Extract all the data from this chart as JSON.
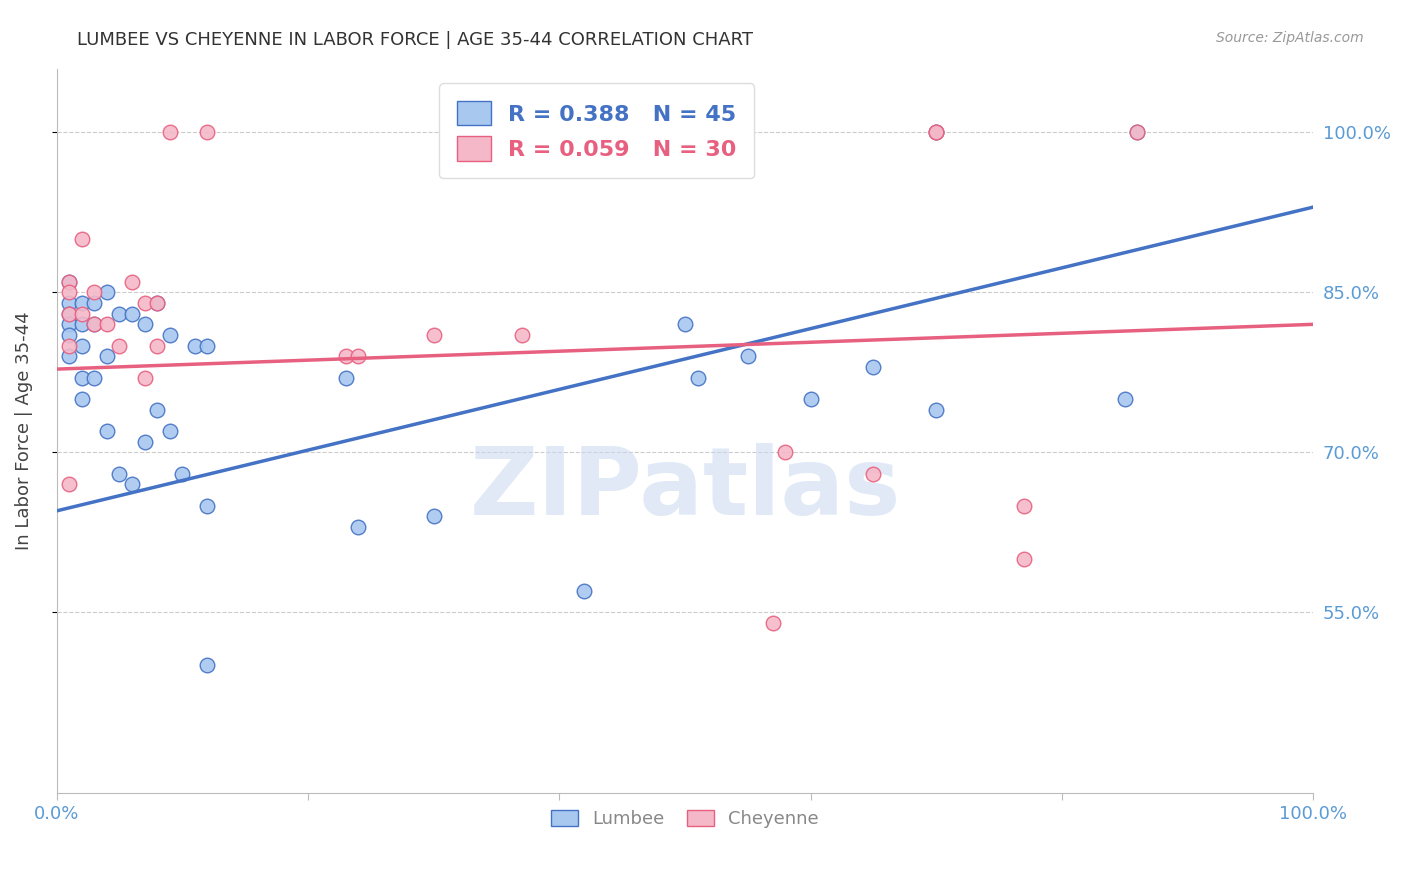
{
  "title": "LUMBEE VS CHEYENNE IN LABOR FORCE | AGE 35-44 CORRELATION CHART",
  "source": "Source: ZipAtlas.com",
  "ylabel": "In Labor Force | Age 35-44",
  "xlim": [
    0.0,
    1.0
  ],
  "ylim": [
    0.38,
    1.06
  ],
  "yticks": [
    0.55,
    0.7,
    0.85,
    1.0
  ],
  "ytick_labels": [
    "55.0%",
    "70.0%",
    "85.0%",
    "100.0%"
  ],
  "legend_blue_label": "R = 0.388   N = 45",
  "legend_pink_label": "R = 0.059   N = 30",
  "lumbee_color": "#A8C8F0",
  "cheyenne_color": "#F4B8C8",
  "blue_line_color": "#4472C4",
  "pink_line_color": "#E86080",
  "axis_color": "#5B9BD5",
  "grid_color": "#CCCCCC",
  "watermark": "ZIPatlas",
  "watermark_color": "#C8D8EE",
  "lumbee_x": [
    0.01,
    0.01,
    0.01,
    0.01,
    0.01,
    0.01,
    0.02,
    0.02,
    0.02,
    0.02,
    0.02,
    0.03,
    0.03,
    0.03,
    0.04,
    0.04,
    0.04,
    0.05,
    0.05,
    0.06,
    0.06,
    0.07,
    0.07,
    0.08,
    0.08,
    0.09,
    0.09,
    0.1,
    0.11,
    0.12,
    0.12,
    0.23,
    0.24,
    0.3,
    0.42,
    0.5,
    0.51,
    0.55,
    0.6,
    0.65,
    0.7,
    0.7,
    0.85,
    0.86,
    0.12
  ],
  "lumbee_y": [
    0.86,
    0.84,
    0.83,
    0.82,
    0.81,
    0.79,
    0.84,
    0.82,
    0.8,
    0.77,
    0.75,
    0.84,
    0.82,
    0.77,
    0.85,
    0.79,
    0.72,
    0.83,
    0.68,
    0.83,
    0.67,
    0.82,
    0.71,
    0.84,
    0.74,
    0.81,
    0.72,
    0.68,
    0.8,
    0.8,
    0.65,
    0.77,
    0.63,
    0.64,
    0.57,
    0.82,
    0.77,
    0.79,
    0.75,
    0.78,
    0.74,
    1.0,
    0.75,
    1.0,
    0.5
  ],
  "cheyenne_x": [
    0.01,
    0.01,
    0.01,
    0.01,
    0.01,
    0.02,
    0.02,
    0.03,
    0.03,
    0.04,
    0.05,
    0.06,
    0.07,
    0.07,
    0.08,
    0.08,
    0.09,
    0.12,
    0.23,
    0.24,
    0.3,
    0.37,
    0.57,
    0.58,
    0.65,
    0.7,
    0.7,
    0.77,
    0.77,
    0.86
  ],
  "cheyenne_y": [
    0.86,
    0.85,
    0.83,
    0.8,
    0.67,
    0.9,
    0.83,
    0.85,
    0.82,
    0.82,
    0.8,
    0.86,
    0.84,
    0.77,
    0.84,
    0.8,
    1.0,
    1.0,
    0.79,
    0.79,
    0.81,
    0.81,
    0.54,
    0.7,
    0.68,
    1.0,
    1.0,
    0.65,
    0.6,
    1.0
  ],
  "blue_intercept": 0.645,
  "blue_slope": 0.285,
  "pink_intercept": 0.778,
  "pink_slope": 0.042,
  "marker_size": 110
}
